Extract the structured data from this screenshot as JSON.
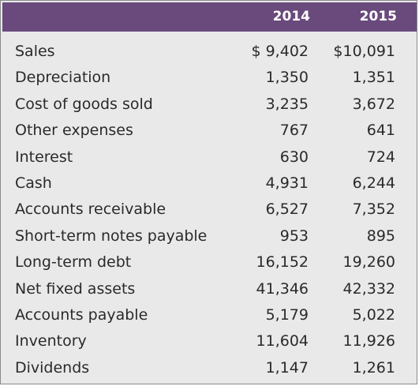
{
  "table": {
    "columns": [
      "2014",
      "2015"
    ],
    "rows": [
      {
        "label": "Sales",
        "v2014": "$ 9,402",
        "v2015": "$10,091"
      },
      {
        "label": "Depreciation",
        "v2014": "1,350",
        "v2015": "1,351"
      },
      {
        "label": "Cost of goods sold",
        "v2014": "3,235",
        "v2015": "3,672"
      },
      {
        "label": "Other expenses",
        "v2014": "767",
        "v2015": "641"
      },
      {
        "label": "Interest",
        "v2014": "630",
        "v2015": "724"
      },
      {
        "label": "Cash",
        "v2014": "4,931",
        "v2015": "6,244"
      },
      {
        "label": "Accounts receivable",
        "v2014": "6,527",
        "v2015": "7,352"
      },
      {
        "label": "Short-term notes payable",
        "v2014": "953",
        "v2015": "895"
      },
      {
        "label": "Long-term debt",
        "v2014": "16,152",
        "v2015": "19,260"
      },
      {
        "label": "Net fixed assets",
        "v2014": "41,346",
        "v2015": "42,332"
      },
      {
        "label": "Accounts payable",
        "v2014": "5,179",
        "v2015": "5,022"
      },
      {
        "label": "Inventory",
        "v2014": "11,604",
        "v2015": "11,926"
      },
      {
        "label": "Dividends",
        "v2014": "1,147",
        "v2015": "1,261"
      }
    ]
  },
  "colors": {
    "header_bg": "#6a4a7c",
    "body_bg": "#e9e9ea",
    "text": "#2a2a2a"
  }
}
